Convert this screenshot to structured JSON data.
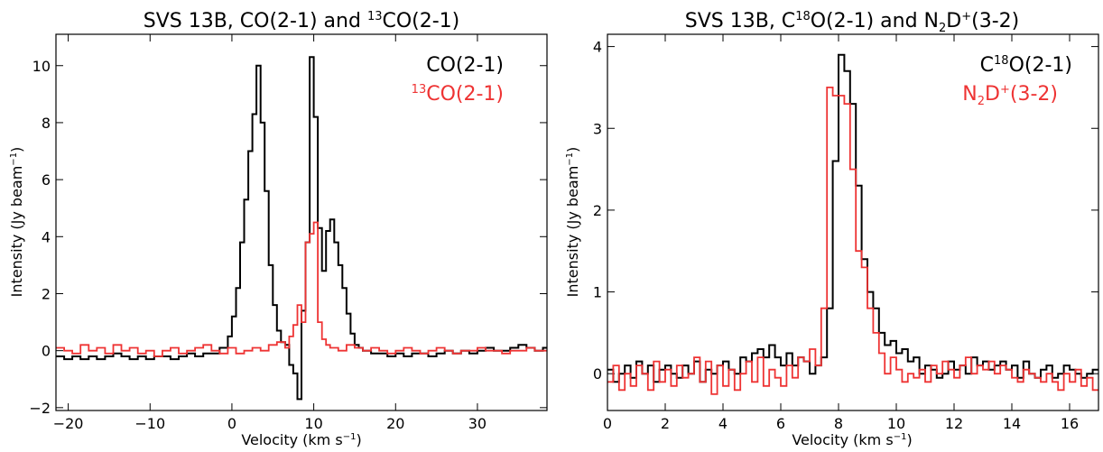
{
  "chart_data": [
    {
      "type": "line",
      "title": {
        "prefix": "SVS 13B, CO(2-1) and ",
        "sup": "13",
        "suffix": "CO(2-1)"
      },
      "xlabel": {
        "main": "Velocity (km s",
        "sup": "−1",
        "end": ")"
      },
      "ylabel": {
        "main": "Intensity (Jy beam",
        "sup": "−1",
        "end": ")"
      },
      "xlim": [
        -21.5,
        38.5
      ],
      "ylim": [
        -2.1,
        11.1
      ],
      "xticks": [
        -20,
        -10,
        0,
        10,
        20,
        30
      ],
      "xtick_labels": [
        "−20",
        "−10",
        "0",
        "10",
        "20",
        "30"
      ],
      "yticks": [
        -2,
        0,
        2,
        4,
        6,
        8,
        10
      ],
      "ytick_labels": [
        "−2",
        "0",
        "2",
        "4",
        "6",
        "8",
        "10"
      ],
      "legend_position": "top-right",
      "series": [
        {
          "name": {
            "pre": "",
            "sup": "",
            "post": "CO(2-1)"
          },
          "color": "#000000",
          "step": true,
          "x": [
            -21.5,
            -20.5,
            -19.5,
            -18.5,
            -17.5,
            -16.5,
            -15.5,
            -14.5,
            -13.5,
            -12.5,
            -11.5,
            -10.5,
            -9.5,
            -8.5,
            -7.5,
            -6.5,
            -5.5,
            -4.5,
            -3.5,
            -2.5,
            -1.5,
            -0.5,
            0.0,
            0.5,
            1.0,
            1.5,
            2.0,
            2.5,
            3.0,
            3.5,
            4.0,
            4.5,
            5.0,
            5.5,
            6.0,
            6.5,
            7.0,
            7.5,
            8.0,
            8.5,
            9.0,
            9.5,
            10.0,
            10.5,
            11.0,
            11.5,
            12.0,
            12.5,
            13.0,
            13.5,
            14.0,
            14.5,
            15.0,
            15.5,
            16.0,
            17.0,
            18.0,
            19.0,
            20.0,
            21.0,
            22.0,
            23.0,
            24.0,
            25.0,
            26.0,
            27.0,
            28.0,
            29.0,
            30.0,
            31.0,
            32.0,
            33.0,
            34.0,
            35.0,
            36.0,
            37.0,
            38.0
          ],
          "values": [
            -0.2,
            -0.3,
            -0.2,
            -0.3,
            -0.2,
            -0.3,
            -0.2,
            -0.1,
            -0.2,
            -0.3,
            -0.2,
            -0.3,
            -0.2,
            -0.2,
            -0.3,
            -0.2,
            -0.1,
            -0.2,
            -0.1,
            -0.1,
            0.1,
            0.5,
            1.2,
            2.2,
            3.8,
            5.3,
            7.0,
            8.3,
            10.0,
            8.0,
            5.6,
            3.0,
            1.6,
            0.7,
            0.3,
            0.2,
            -0.5,
            -0.8,
            -1.7,
            1.4,
            3.8,
            10.3,
            8.2,
            4.3,
            2.8,
            4.2,
            4.6,
            3.8,
            3.0,
            2.2,
            1.3,
            0.6,
            0.2,
            0.1,
            0.0,
            -0.1,
            -0.1,
            -0.2,
            -0.1,
            -0.2,
            -0.1,
            -0.1,
            -0.2,
            -0.1,
            0.0,
            -0.1,
            0.0,
            -0.1,
            0.0,
            0.1,
            0.0,
            0.0,
            0.1,
            0.2,
            0.1,
            0.0,
            0.1
          ]
        },
        {
          "name": {
            "pre": "",
            "sup": "13",
            "post": "CO(2-1)"
          },
          "color": "#ee3333",
          "step": true,
          "x": [
            -21.5,
            -20.5,
            -19.5,
            -18.5,
            -17.5,
            -16.5,
            -15.5,
            -14.5,
            -13.5,
            -12.5,
            -11.5,
            -10.5,
            -9.5,
            -8.5,
            -7.5,
            -6.5,
            -5.5,
            -4.5,
            -3.5,
            -2.5,
            -1.5,
            -0.5,
            0.5,
            1.5,
            2.5,
            3.5,
            4.5,
            5.5,
            6.5,
            7.0,
            7.5,
            8.0,
            8.5,
            9.0,
            9.5,
            10.0,
            10.5,
            11.0,
            11.5,
            12.0,
            13.0,
            14.0,
            15.0,
            16.0,
            17.0,
            18.0,
            19.0,
            20.0,
            21.0,
            22.0,
            23.0,
            24.0,
            25.0,
            26.0,
            27.0,
            28.0,
            29.0,
            30.0,
            31.0,
            32.0,
            33.0,
            34.0,
            35.0,
            36.0,
            37.0,
            38.0
          ],
          "values": [
            0.1,
            0.0,
            -0.1,
            0.2,
            0.0,
            0.1,
            -0.1,
            0.2,
            0.0,
            0.1,
            -0.1,
            0.0,
            -0.2,
            0.0,
            0.1,
            -0.1,
            0.0,
            0.1,
            0.2,
            0.0,
            -0.1,
            0.1,
            -0.1,
            0.0,
            0.1,
            0.0,
            0.2,
            0.3,
            0.1,
            0.5,
            0.9,
            1.6,
            1.0,
            3.8,
            4.1,
            4.5,
            1.0,
            0.4,
            0.2,
            0.1,
            0.0,
            0.2,
            0.1,
            0.0,
            0.1,
            0.0,
            -0.1,
            0.0,
            0.1,
            0.0,
            -0.1,
            0.0,
            0.1,
            0.0,
            -0.1,
            0.0,
            0.0,
            0.1,
            0.0,
            0.0,
            -0.1,
            0.0,
            0.0,
            0.1,
            0.0,
            0.0
          ]
        }
      ]
    },
    {
      "type": "line",
      "title": {
        "prefix": "SVS 13B, C",
        "sup": "18",
        "mid": "O(2-1) and N",
        "sub": "2",
        "mid2": "D",
        "sup2": "+",
        "suffix": "(3-2)"
      },
      "xlabel": {
        "main": "Velocity (km s",
        "sup": "−1",
        "end": ")"
      },
      "ylabel": {
        "main": "Intensity (Jy beam",
        "sup": "−1",
        "end": ")"
      },
      "xlim": [
        0,
        17
      ],
      "ylim": [
        -0.45,
        4.15
      ],
      "xticks": [
        0,
        2,
        4,
        6,
        8,
        10,
        12,
        14,
        16
      ],
      "xtick_labels": [
        "0",
        "2",
        "4",
        "6",
        "8",
        "10",
        "12",
        "14",
        "16"
      ],
      "yticks": [
        0,
        1,
        2,
        3,
        4
      ],
      "ytick_labels": [
        "0",
        "1",
        "2",
        "3",
        "4"
      ],
      "legend_position": "top-right",
      "series": [
        {
          "name": {
            "pre": "C",
            "sup": "18",
            "post": "O(2-1)"
          },
          "color": "#000000",
          "step": true,
          "x": [
            0.0,
            0.2,
            0.4,
            0.6,
            0.8,
            1.0,
            1.2,
            1.4,
            1.6,
            1.8,
            2.0,
            2.2,
            2.4,
            2.6,
            2.8,
            3.0,
            3.2,
            3.4,
            3.6,
            3.8,
            4.0,
            4.2,
            4.4,
            4.6,
            4.8,
            5.0,
            5.2,
            5.4,
            5.6,
            5.8,
            6.0,
            6.2,
            6.4,
            6.6,
            6.8,
            7.0,
            7.2,
            7.4,
            7.6,
            7.8,
            8.0,
            8.2,
            8.4,
            8.6,
            8.8,
            9.0,
            9.2,
            9.4,
            9.6,
            9.8,
            10.0,
            10.2,
            10.4,
            10.6,
            10.8,
            11.0,
            11.2,
            11.4,
            11.6,
            11.8,
            12.0,
            12.2,
            12.4,
            12.6,
            12.8,
            13.0,
            13.2,
            13.4,
            13.6,
            13.8,
            14.0,
            14.2,
            14.4,
            14.6,
            14.8,
            15.0,
            15.2,
            15.4,
            15.6,
            15.8,
            16.0,
            16.2,
            16.4,
            16.6,
            16.8
          ],
          "values": [
            0.05,
            -0.1,
            0.0,
            0.1,
            -0.05,
            0.15,
            0.0,
            0.1,
            -0.1,
            0.05,
            0.1,
            0.0,
            -0.05,
            0.1,
            0.0,
            0.15,
            -0.1,
            0.05,
            0.0,
            0.1,
            0.15,
            0.05,
            0.0,
            0.2,
            0.15,
            0.25,
            0.3,
            0.2,
            0.35,
            0.2,
            0.1,
            0.25,
            0.1,
            0.2,
            0.15,
            0.0,
            0.1,
            0.2,
            0.8,
            2.6,
            3.9,
            3.7,
            3.3,
            2.3,
            1.4,
            1.0,
            0.8,
            0.5,
            0.35,
            0.4,
            0.25,
            0.3,
            0.15,
            0.2,
            0.0,
            0.1,
            0.05,
            -0.05,
            0.0,
            0.15,
            0.05,
            0.1,
            0.0,
            0.2,
            0.1,
            0.15,
            0.05,
            0.1,
            0.15,
            0.05,
            0.1,
            -0.05,
            0.15,
            0.0,
            -0.05,
            0.05,
            0.1,
            -0.05,
            0.0,
            0.1,
            0.05,
            0.0,
            -0.05,
            0.0,
            0.05
          ]
        },
        {
          "name": {
            "pre": "N",
            "sub": "2",
            "mid": "D",
            "sup": "+",
            "post": "(3-2)"
          },
          "color": "#ee3333",
          "step": true,
          "x": [
            0.0,
            0.2,
            0.4,
            0.6,
            0.8,
            1.0,
            1.2,
            1.4,
            1.6,
            1.8,
            2.0,
            2.2,
            2.4,
            2.6,
            2.8,
            3.0,
            3.2,
            3.4,
            3.6,
            3.8,
            4.0,
            4.2,
            4.4,
            4.6,
            4.8,
            5.0,
            5.2,
            5.4,
            5.6,
            5.8,
            6.0,
            6.2,
            6.4,
            6.6,
            6.8,
            7.0,
            7.2,
            7.4,
            7.6,
            7.8,
            8.0,
            8.2,
            8.4,
            8.6,
            8.8,
            9.0,
            9.2,
            9.4,
            9.6,
            9.8,
            10.0,
            10.2,
            10.4,
            10.6,
            10.8,
            11.0,
            11.2,
            11.4,
            11.6,
            11.8,
            12.0,
            12.2,
            12.4,
            12.6,
            12.8,
            13.0,
            13.2,
            13.4,
            13.6,
            13.8,
            14.0,
            14.2,
            14.4,
            14.6,
            14.8,
            15.0,
            15.2,
            15.4,
            15.6,
            15.8,
            16.0,
            16.2,
            16.4,
            16.6,
            16.8
          ],
          "values": [
            -0.1,
            0.1,
            -0.2,
            0.0,
            -0.15,
            0.1,
            0.0,
            -0.2,
            0.15,
            -0.1,
            0.05,
            -0.15,
            0.1,
            -0.05,
            0.0,
            0.2,
            -0.1,
            0.15,
            -0.25,
            0.1,
            -0.15,
            0.05,
            -0.2,
            0.0,
            0.15,
            -0.1,
            0.2,
            -0.15,
            0.05,
            -0.05,
            -0.15,
            0.1,
            -0.05,
            0.2,
            0.15,
            0.3,
            0.1,
            0.8,
            3.5,
            3.4,
            3.4,
            3.3,
            2.5,
            1.5,
            1.3,
            0.8,
            0.5,
            0.25,
            0.0,
            0.2,
            0.05,
            -0.1,
            0.0,
            -0.05,
            0.05,
            -0.1,
            0.1,
            0.0,
            0.15,
            0.05,
            -0.05,
            0.1,
            0.2,
            0.0,
            0.1,
            0.05,
            0.15,
            0.0,
            0.1,
            0.05,
            -0.05,
            -0.1,
            0.05,
            0.0,
            -0.05,
            -0.1,
            0.0,
            -0.1,
            -0.2,
            0.0,
            -0.1,
            0.05,
            -0.15,
            -0.05,
            -0.2
          ]
        }
      ]
    }
  ]
}
